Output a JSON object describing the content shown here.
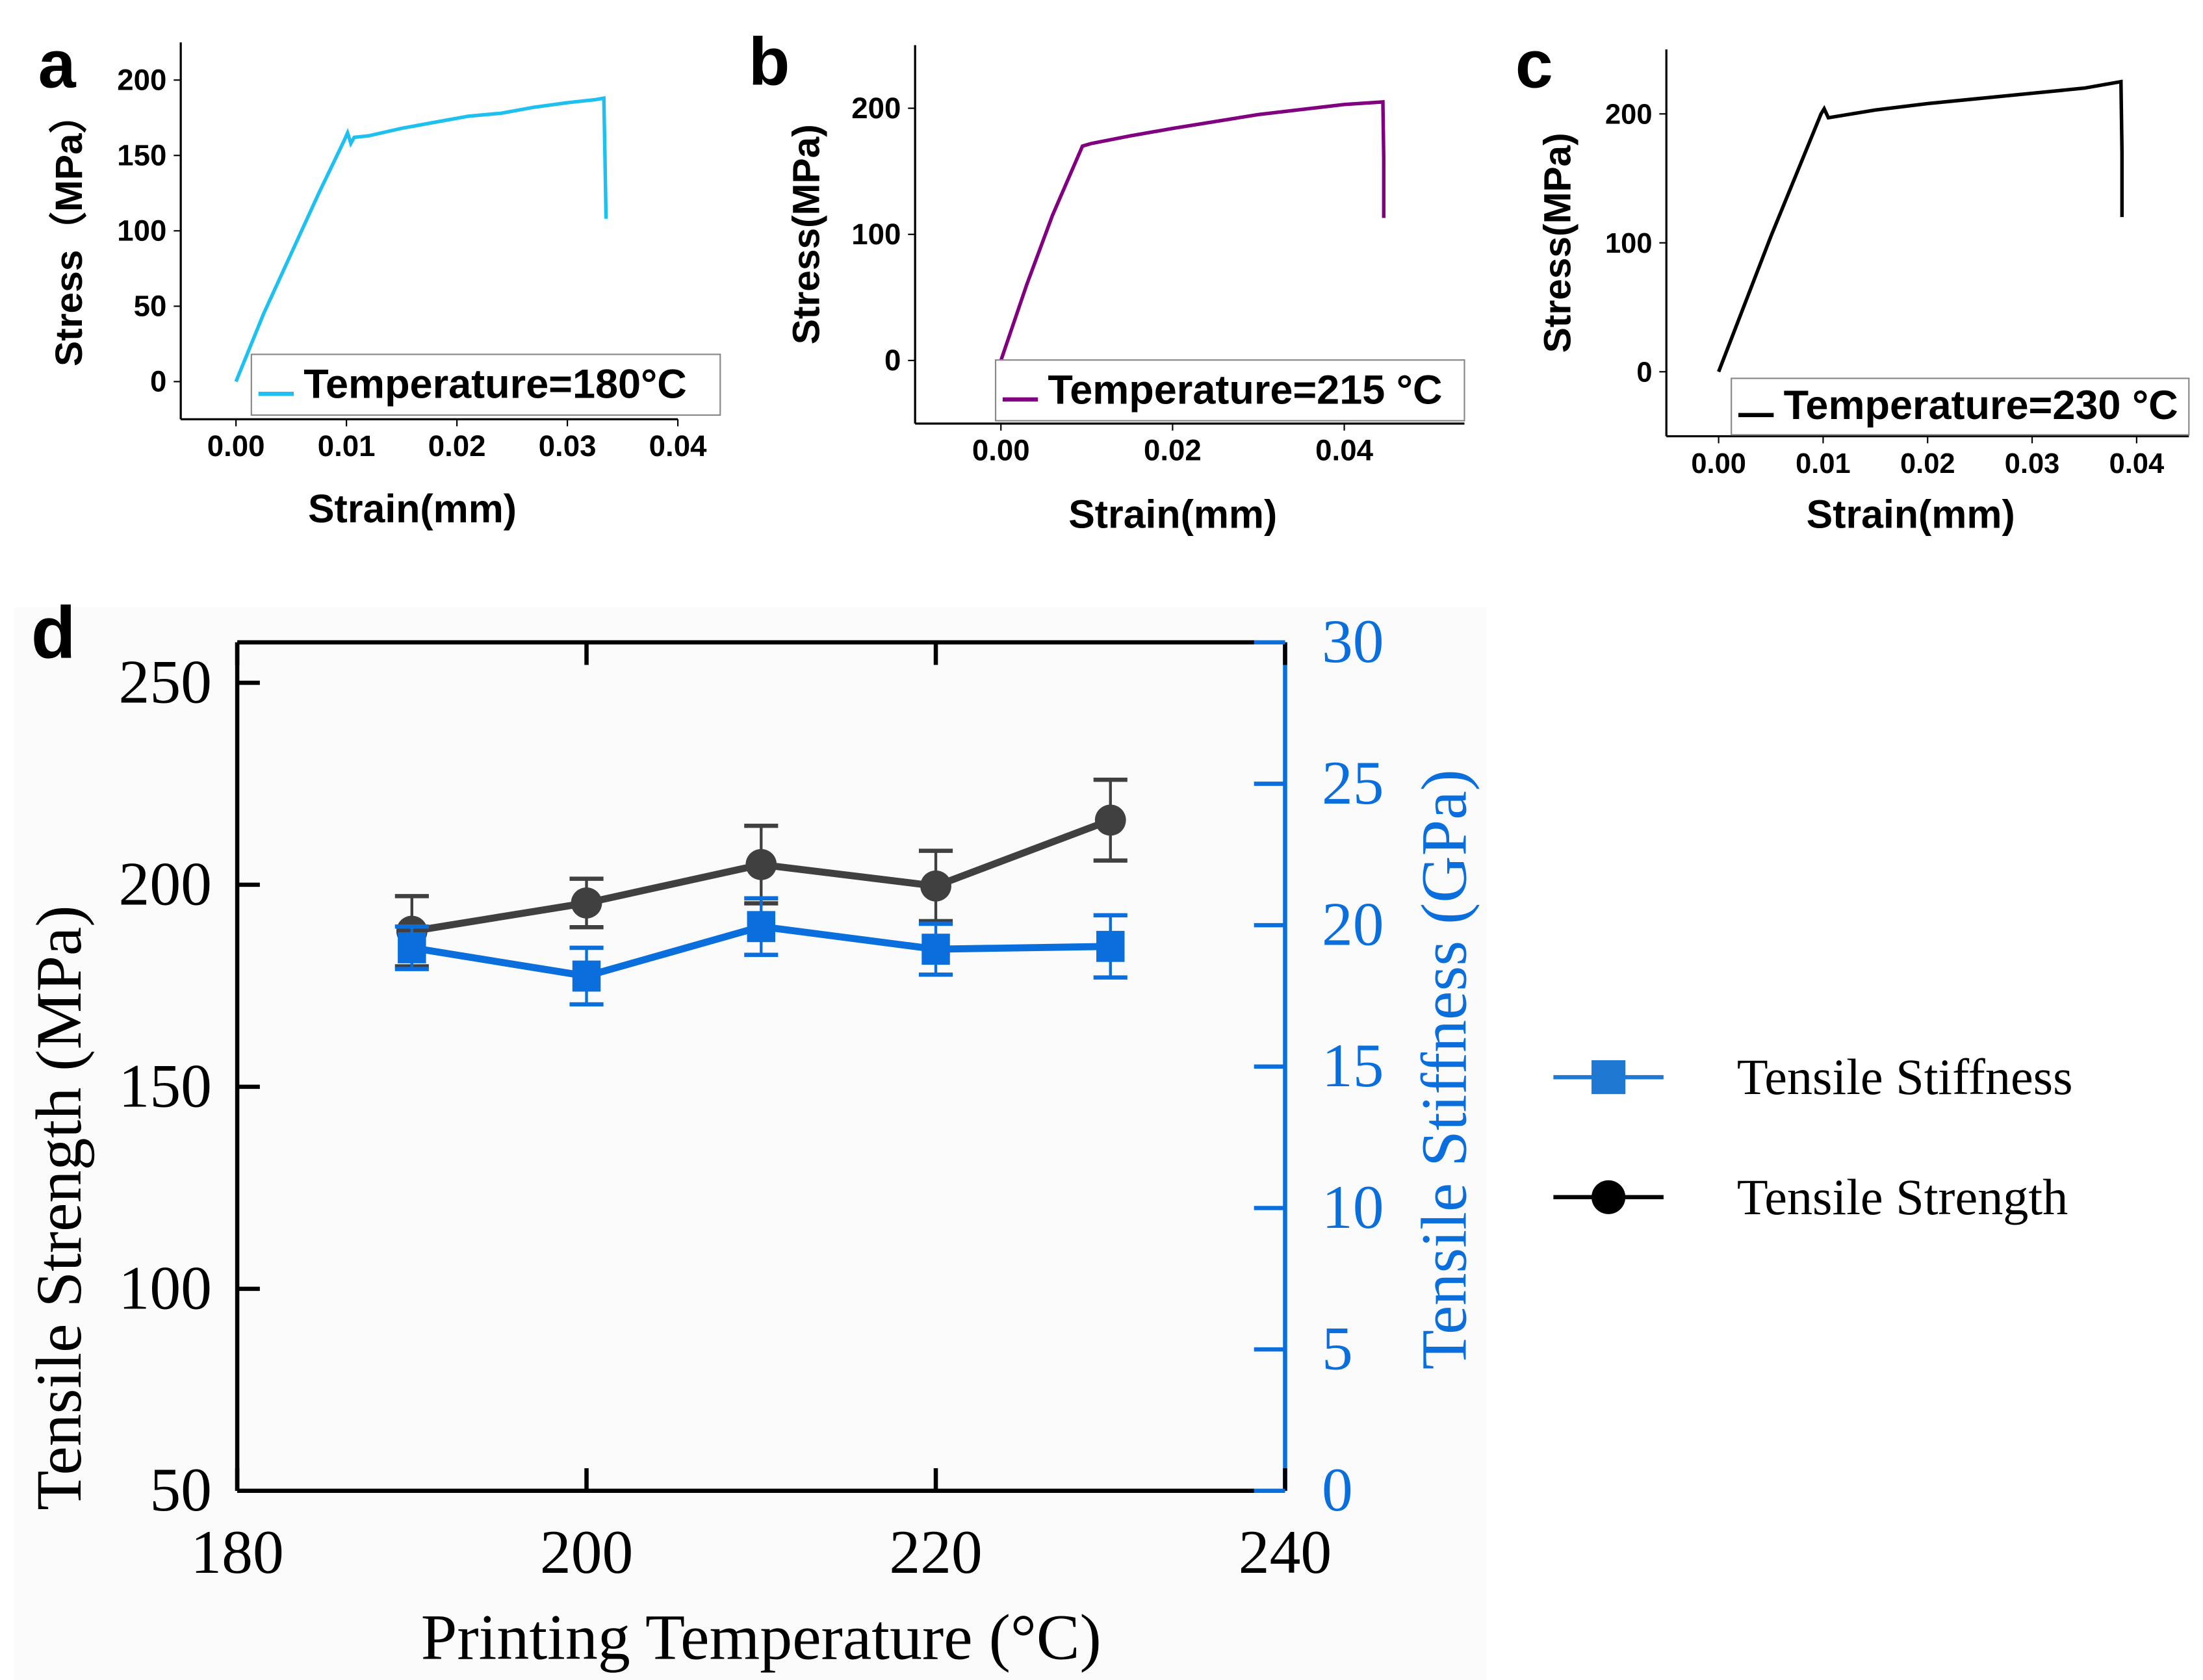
{
  "chart_data": [
    {
      "panel": "a",
      "type": "line",
      "xlabel": "Strain(mm)",
      "ylabel": "Stress（MPa）",
      "xlim": [
        -0.005,
        0.04
      ],
      "ylim": [
        -25,
        225
      ],
      "xticks": [
        "0.00",
        "0.01",
        "0.02",
        "0.03",
        "0.04"
      ],
      "xtick_values": [
        0,
        0.01,
        0.02,
        0.03,
        0.04
      ],
      "yticks": [
        "0",
        "50",
        "100",
        "150",
        "200"
      ],
      "ytick_values": [
        0,
        50,
        100,
        150,
        200
      ],
      "legend": "Temperature=180°C",
      "color": "#1ec0f0",
      "x": [
        0,
        0.0025,
        0.005,
        0.0075,
        0.0098,
        0.0101,
        0.0104,
        0.0107,
        0.012,
        0.015,
        0.018,
        0.021,
        0.024,
        0.027,
        0.03,
        0.0325,
        0.0333,
        0.0334,
        0.0335
      ],
      "y": [
        0,
        45,
        85,
        125,
        160,
        165,
        158,
        162,
        163,
        168,
        172,
        176,
        178,
        182,
        185,
        187,
        188,
        150,
        108
      ]
    },
    {
      "panel": "b",
      "type": "line",
      "xlabel": "Strain(mm)",
      "ylabel": "Stress(MPa)",
      "xlim": [
        -0.01,
        0.054
      ],
      "ylim": [
        -50,
        250
      ],
      "xticks": [
        "0.00",
        "0.02",
        "0.04"
      ],
      "xtick_values": [
        0,
        0.02,
        0.04
      ],
      "yticks": [
        "0",
        "100",
        "200"
      ],
      "ytick_values": [
        0,
        100,
        200
      ],
      "legend": "Temperature=215 °C",
      "color": "#800080",
      "x": [
        0,
        0.003,
        0.006,
        0.0095,
        0.0105,
        0.015,
        0.02,
        0.03,
        0.04,
        0.0445,
        0.0446,
        0.0446
      ],
      "y": [
        0,
        60,
        115,
        170,
        172,
        178,
        184,
        195,
        203,
        205,
        160,
        113
      ],
      "note": ""
    },
    {
      "panel": "c",
      "type": "line",
      "xlabel": "Strain(mm)",
      "ylabel": "Stress(MPa)",
      "xlim": [
        -0.005,
        0.045
      ],
      "ylim": [
        -50,
        250
      ],
      "xticks": [
        "0.00",
        "0.01",
        "0.02",
        "0.03",
        "0.04"
      ],
      "xtick_values": [
        0,
        0.01,
        0.02,
        0.03,
        0.04
      ],
      "yticks": [
        "0",
        "100",
        "200"
      ],
      "ytick_values": [
        0,
        100,
        200
      ],
      "legend": "Temperature=230 °C",
      "color": "#000000",
      "x": [
        0,
        0.005,
        0.0098,
        0.0101,
        0.0105,
        0.015,
        0.02,
        0.025,
        0.03,
        0.035,
        0.0385,
        0.0386,
        0.0386
      ],
      "y": [
        0,
        105,
        200,
        204,
        197,
        203,
        208,
        212,
        216,
        220,
        225,
        170,
        120
      ]
    },
    {
      "panel": "d",
      "type": "line",
      "xlabel": "Printing Temperature (°C)",
      "ylabel": "Tensile Strength (MPa)",
      "y2label": "Tensile Stiffness (GPa)",
      "xlim": [
        180,
        240
      ],
      "ylim": [
        50,
        260
      ],
      "y2lim": [
        0,
        30
      ],
      "xticks": [
        "180",
        "200",
        "220",
        "240"
      ],
      "xtick_values": [
        180,
        200,
        220,
        240
      ],
      "yticks": [
        "50",
        "100",
        "150",
        "200",
        "250"
      ],
      "ytick_values": [
        50,
        100,
        150,
        200,
        250
      ],
      "y2ticks": [
        "0",
        "5",
        "10",
        "15",
        "20",
        "25",
        "30"
      ],
      "y2tick_values": [
        0,
        5,
        10,
        15,
        20,
        25,
        30
      ],
      "x": [
        190,
        200,
        210,
        220,
        230
      ],
      "series": [
        {
          "name": "Tensile Stiffness",
          "axis": "right",
          "marker": "square",
          "color": "#0a6fdc",
          "values": [
            19.2,
            18.2,
            19.95,
            19.15,
            19.25
          ],
          "errors": [
            0.75,
            1.0,
            1.0,
            0.9,
            1.1
          ]
        },
        {
          "name": "Tensile Strength",
          "axis": "left",
          "marker": "circle",
          "color": "#404040",
          "values": [
            188.5,
            195.5,
            205,
            199.7,
            216
          ],
          "errors": [
            8.7,
            6,
            9.6,
            8.7,
            10
          ]
        }
      ],
      "legend_position": "right"
    }
  ]
}
